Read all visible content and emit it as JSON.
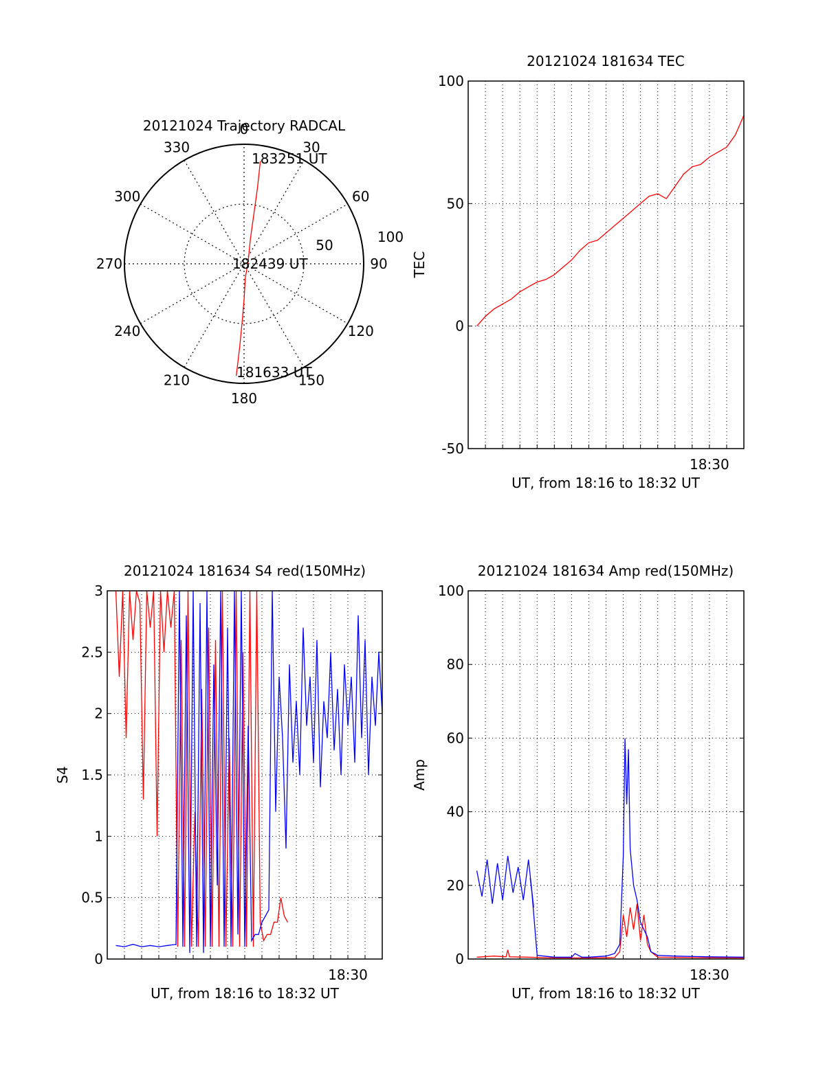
{
  "chart_data": [
    {
      "type": "polar",
      "title": "20121024 Trajectory RADCAL",
      "angle_labels": [
        "0",
        "30",
        "60",
        "90",
        "120",
        "150",
        "180",
        "210",
        "240",
        "270",
        "300",
        "330"
      ],
      "radial_labels": [
        "50",
        "100"
      ],
      "rlim": [
        0,
        100
      ],
      "trajectory_labels": {
        "start": "181633 UT",
        "mid": "182439 UT",
        "end": "183251 UT"
      },
      "trajectory": [
        {
          "az": 184,
          "zen": 94
        },
        {
          "az": 183,
          "zen": 70
        },
        {
          "az": 182,
          "zen": 50
        },
        {
          "az": 180,
          "zen": 30
        },
        {
          "az": 175,
          "zen": 12
        },
        {
          "az": 60,
          "zen": 4
        },
        {
          "az": 14,
          "zen": 22
        },
        {
          "az": 11,
          "zen": 45
        },
        {
          "az": 10,
          "zen": 65
        },
        {
          "az": 9,
          "zen": 87
        }
      ],
      "series_color": "#ff0000"
    },
    {
      "type": "line",
      "title": "20121024 181634 TEC",
      "xlabel": "UT, from 18:16 to 18:32 UT",
      "ylabel": "TEC",
      "ylim": [
        -50,
        100
      ],
      "yticks": [
        "-50",
        "0",
        "50",
        "100"
      ],
      "xlim": [
        0,
        16
      ],
      "xtick_label": "18:30",
      "grid": true,
      "series": [
        {
          "color": "#ff0000",
          "x": [
            0.5,
            1.0,
            1.5,
            2.0,
            2.5,
            3.0,
            3.5,
            4.0,
            4.5,
            5.0,
            5.5,
            6.0,
            6.5,
            7.0,
            7.5,
            8.0,
            8.5,
            9.0,
            9.5,
            10.0,
            10.5,
            11.0,
            11.5,
            12.0,
            12.5,
            13.0,
            13.5,
            14.0,
            14.5,
            15.0,
            15.5,
            16.0
          ],
          "y": [
            0,
            4,
            7,
            9,
            11,
            14,
            16,
            18,
            19,
            21,
            24,
            27,
            31,
            34,
            35,
            38,
            41,
            44,
            47,
            50,
            53,
            54,
            52,
            57,
            62,
            65,
            66,
            69,
            71,
            73,
            78,
            86
          ]
        }
      ]
    },
    {
      "type": "line",
      "title": "20121024 181634 S4 red(150MHz)",
      "xlabel": "UT, from 18:16 to 18:32 UT",
      "ylabel": "S4",
      "ylim": [
        0,
        3
      ],
      "yticks": [
        "0",
        "0.5",
        "1",
        "1.5",
        "2",
        "2.5",
        "3"
      ],
      "xlim": [
        0,
        16
      ],
      "xtick_label": "18:30",
      "grid": true,
      "series": [
        {
          "color": "#ff0000",
          "x": [
            0.5,
            0.7,
            0.9,
            1.1,
            1.3,
            1.5,
            1.7,
            1.9,
            2.1,
            2.3,
            2.5,
            2.7,
            2.9,
            3.1,
            3.3,
            3.5,
            3.7,
            3.9,
            4.1,
            4.3,
            4.5,
            4.7,
            4.9,
            5.1,
            5.3,
            5.5,
            5.7,
            5.9,
            6.1,
            6.3,
            6.5,
            6.7,
            6.9,
            7.1,
            7.3,
            7.5,
            7.7,
            7.9,
            8.1,
            8.3,
            8.5,
            8.7,
            8.9,
            9.1,
            9.3,
            9.5,
            9.7,
            9.9,
            10.1,
            10.3,
            10.5
          ],
          "y": [
            3,
            2.3,
            3,
            1.8,
            3,
            2.6,
            3,
            2.9,
            1.3,
            3,
            2.7,
            3,
            1.0,
            3,
            2.5,
            3,
            2.7,
            3,
            0.1,
            2.6,
            0.1,
            3,
            0.1,
            1.2,
            0.1,
            2.2,
            0.1,
            2.7,
            0.1,
            2.6,
            0.1,
            3,
            0.1,
            1.8,
            0.1,
            3,
            0.1,
            2.5,
            0.1,
            3,
            0.1,
            3,
            0.3,
            0.15,
            0.2,
            0.2,
            0.3,
            0.3,
            0.5,
            0.35,
            0.3
          ]
        },
        {
          "color": "#0000ff",
          "x": [
            0.5,
            1.0,
            1.5,
            2.0,
            2.5,
            3.0,
            3.5,
            4.0,
            4.2,
            4.4,
            4.6,
            4.8,
            5.0,
            5.2,
            5.4,
            5.6,
            5.8,
            6.0,
            6.2,
            6.4,
            6.6,
            6.8,
            7.0,
            7.2,
            7.4,
            7.6,
            7.8,
            8.0,
            8.2,
            8.4,
            8.6,
            8.8,
            9.0,
            9.2,
            9.4,
            9.6,
            9.8,
            10.0,
            10.2,
            10.4,
            10.6,
            10.8,
            11.0,
            11.2,
            11.4,
            11.6,
            11.8,
            12.0,
            12.2,
            12.4,
            12.6,
            12.8,
            13.0,
            13.2,
            13.4,
            13.6,
            13.8,
            14.0,
            14.2,
            14.4,
            14.6,
            14.8,
            15.0,
            15.2,
            15.4,
            15.6,
            15.8,
            16.0
          ],
          "y": [
            0.11,
            0.1,
            0.12,
            0.1,
            0.11,
            0.1,
            0.11,
            0.12,
            3,
            0.1,
            2.8,
            0.05,
            3,
            0.1,
            2.9,
            0.05,
            3,
            0.1,
            2.4,
            0.6,
            3,
            0.1,
            2.7,
            0.1,
            3,
            0.2,
            3,
            0.1,
            1.9,
            0.15,
            0.2,
            0.2,
            0.3,
            0.35,
            0.4,
            3,
            1.2,
            2.3,
            1.8,
            0.9,
            2.4,
            1.6,
            2.1,
            1.5,
            2.7,
            1.9,
            2.3,
            1.6,
            2.6,
            1.4,
            2.1,
            1.8,
            2.5,
            1.7,
            2.2,
            1.5,
            2.4,
            1.9,
            2.3,
            1.6,
            2.8,
            1.8,
            2.6,
            1.5,
            2.3,
            1.9,
            2.5,
            2.0
          ]
        }
      ]
    },
    {
      "type": "line",
      "title": "20121024 181634 Amp red(150MHz)",
      "xlabel": "UT, from 18:16 to 18:32 UT",
      "ylabel": "Amp",
      "ylim": [
        0,
        100
      ],
      "yticks": [
        "0",
        "20",
        "40",
        "60",
        "80",
        "100"
      ],
      "xlim": [
        0,
        16
      ],
      "xtick_label": "18:30",
      "grid": true,
      "series": [
        {
          "color": "#ff0000",
          "x": [
            0.5,
            1.5,
            2.2,
            2.3,
            2.4,
            3.5,
            5.0,
            7.0,
            8.5,
            8.8,
            9.0,
            9.2,
            9.4,
            9.6,
            9.8,
            10.0,
            10.2,
            10.4,
            10.6,
            11.0,
            13.0,
            16.0
          ],
          "y": [
            0.5,
            0.8,
            0.6,
            2.5,
            0.6,
            0.5,
            0.3,
            0.3,
            0.4,
            2,
            12,
            6,
            14,
            8,
            15,
            5,
            12,
            4,
            2,
            0.5,
            0.4,
            0.3
          ]
        },
        {
          "color": "#0000ff",
          "x": [
            0.5,
            0.8,
            1.1,
            1.4,
            1.7,
            2.0,
            2.3,
            2.6,
            2.9,
            3.2,
            3.5,
            3.8,
            3.6,
            3.7,
            4.0,
            5.0,
            6.0,
            6.2,
            6.6,
            7.0,
            8.0,
            8.5,
            8.8,
            9.0,
            9.1,
            9.2,
            9.3,
            9.4,
            9.6,
            9.8,
            10.0,
            10.2,
            10.4,
            10.6,
            11.0,
            12.0,
            14.0,
            16.0
          ],
          "y": [
            24,
            17,
            27,
            15,
            26,
            16,
            28,
            18,
            25,
            16,
            27,
            14,
            22,
            18,
            1,
            0.5,
            0.5,
            1.5,
            0.5,
            0.5,
            0.8,
            1.5,
            4,
            28,
            60,
            42,
            57,
            30,
            20,
            16,
            10,
            8,
            6,
            2,
            1,
            0.8,
            0.6,
            0.5
          ]
        }
      ]
    }
  ]
}
